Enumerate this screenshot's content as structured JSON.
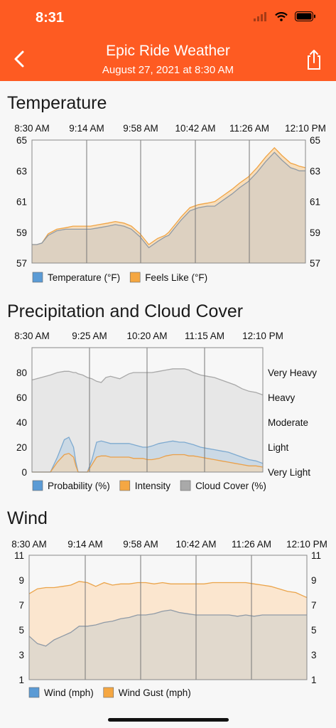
{
  "status_bar": {
    "time": "8:31"
  },
  "header": {
    "title": "Epic Ride Weather",
    "subtitle": "August 27, 2021 at 8:30 AM"
  },
  "colors": {
    "accent": "#fe5b22",
    "blue": "#5b9bd5",
    "orange": "#f5a742",
    "gray": "#a9a9a9"
  },
  "icons": {
    "back": "chevron-left-icon",
    "share": "share-icon"
  },
  "chart_data": [
    {
      "type": "area",
      "title": "Temperature",
      "x_ticks": [
        "8:30 AM",
        "9:14 AM",
        "9:58 AM",
        "10:42 AM",
        "11:26 AM",
        "12:10 PM"
      ],
      "x": [
        0,
        4,
        8,
        13,
        20,
        27,
        33,
        40,
        47,
        54,
        61,
        67,
        74,
        80,
        87,
        94,
        101,
        107,
        110,
        112,
        114,
        117,
        120,
        127,
        134,
        141,
        147,
        154,
        161,
        167,
        174,
        181,
        188,
        195,
        201,
        208,
        212,
        215,
        220
      ],
      "ylim": [
        57,
        65
      ],
      "y_ticks": [
        57,
        59,
        61,
        63,
        65
      ],
      "series": [
        {
          "name": "Temperature (°F)",
          "values": [
            58.2,
            58.2,
            58.3,
            58.8,
            59.1,
            59.2,
            59.2,
            59.2,
            59.2,
            59.3,
            59.4,
            59.5,
            59.4,
            59.2,
            58.7,
            58.0,
            58.4,
            58.7,
            58.8,
            59.0,
            59.2,
            59.5,
            59.8,
            60.4,
            60.6,
            60.7,
            60.7,
            61.1,
            61.5,
            61.9,
            62.3,
            62.9,
            63.6,
            64.2,
            63.7,
            63.2,
            63.1,
            63.0,
            63.0
          ]
        },
        {
          "name": "Feels Like (°F)",
          "values": [
            58.2,
            58.2,
            58.3,
            58.9,
            59.2,
            59.3,
            59.4,
            59.4,
            59.4,
            59.5,
            59.6,
            59.7,
            59.6,
            59.4,
            58.9,
            58.2,
            58.6,
            58.8,
            59.0,
            59.2,
            59.4,
            59.7,
            60.0,
            60.6,
            60.8,
            60.9,
            61.0,
            61.4,
            61.8,
            62.2,
            62.6,
            63.2,
            63.9,
            64.5,
            64.0,
            63.5,
            63.4,
            63.3,
            63.2
          ]
        }
      ],
      "legend": [
        "Temperature (°F)",
        "Feels Like (°F)"
      ]
    },
    {
      "type": "area",
      "title": "Precipitation and Cloud Cover",
      "x_ticks": [
        "8:30 AM",
        "9:25 AM",
        "10:20 AM",
        "11:15 AM",
        "12:10 PM"
      ],
      "x": [
        0,
        4,
        8,
        11,
        14,
        16,
        18,
        19,
        20,
        22,
        24,
        26,
        28,
        30,
        32,
        34,
        36,
        38,
        40,
        42,
        44,
        46,
        48,
        50,
        52,
        55,
        58,
        61,
        64,
        66,
        68,
        70,
        73,
        76,
        79,
        82,
        85,
        88,
        91,
        94,
        97,
        100
      ],
      "ylim": [
        0,
        100
      ],
      "y_ticks": [
        0,
        20,
        40,
        60,
        80
      ],
      "right_labels": [
        "Very Light",
        "Light",
        "Moderate",
        "Heavy",
        "Very Heavy"
      ],
      "series": [
        {
          "name": "Probability (%)",
          "values": [
            0,
            0,
            0,
            12,
            26,
            28,
            20,
            8,
            0,
            0,
            0,
            10,
            24,
            25,
            24,
            23,
            23,
            23,
            23,
            23,
            22,
            21,
            20,
            20,
            21,
            23,
            24,
            25,
            24,
            24,
            23,
            22,
            20,
            19,
            18,
            17,
            16,
            14,
            12,
            10,
            9,
            7
          ]
        },
        {
          "name": "Intensity",
          "values": [
            0,
            0,
            0,
            8,
            14,
            15,
            12,
            5,
            0,
            0,
            0,
            6,
            12,
            13,
            13,
            12,
            12,
            12,
            12,
            12,
            11,
            11,
            11,
            10,
            10,
            11,
            13,
            14,
            14,
            14,
            13,
            13,
            12,
            11,
            10,
            9,
            8,
            7,
            6,
            5,
            5,
            4
          ]
        },
        {
          "name": "Cloud Cover (%)",
          "values": [
            74,
            76,
            78,
            80,
            81,
            81,
            80,
            80,
            79,
            78,
            76,
            75,
            73,
            72,
            76,
            77,
            76,
            75,
            77,
            79,
            80,
            80,
            80,
            80,
            80,
            81,
            82,
            83,
            83,
            83,
            82,
            80,
            78,
            77,
            76,
            74,
            72,
            70,
            67,
            65,
            64,
            62
          ]
        }
      ],
      "legend": [
        "Probability (%)",
        "Intensity",
        "Cloud Cover (%)"
      ]
    },
    {
      "type": "area",
      "title": "Wind",
      "x_ticks": [
        "8:30 AM",
        "9:14 AM",
        "9:58 AM",
        "10:42 AM",
        "11:26 AM",
        "12:10 PM"
      ],
      "x": [
        0,
        3,
        6,
        9,
        12,
        15,
        18,
        21,
        24,
        27,
        30,
        33,
        36,
        39,
        42,
        45,
        48,
        51,
        54,
        57,
        60,
        63,
        66,
        69,
        72,
        75,
        78,
        81,
        84,
        87,
        90,
        93,
        96,
        99,
        100
      ],
      "ylim": [
        1,
        11
      ],
      "y_ticks": [
        1,
        3,
        5,
        7,
        9,
        11
      ],
      "series": [
        {
          "name": "Wind (mph)",
          "values": [
            4.5,
            3.9,
            3.7,
            4.2,
            4.5,
            4.8,
            5.3,
            5.3,
            5.4,
            5.6,
            5.7,
            5.9,
            6.0,
            6.2,
            6.2,
            6.3,
            6.5,
            6.6,
            6.4,
            6.3,
            6.2,
            6.2,
            6.2,
            6.2,
            6.2,
            6.1,
            6.2,
            6.1,
            6.2,
            6.2,
            6.2,
            6.2,
            6.2,
            6.2,
            6.2
          ]
        },
        {
          "name": "Wind Gust (mph)",
          "values": [
            7.9,
            8.3,
            8.4,
            8.4,
            8.5,
            8.6,
            8.9,
            8.8,
            8.5,
            8.8,
            8.6,
            8.7,
            8.7,
            8.8,
            8.8,
            8.7,
            8.8,
            8.7,
            8.7,
            8.7,
            8.7,
            8.7,
            8.8,
            8.8,
            8.8,
            8.8,
            8.8,
            8.7,
            8.6,
            8.5,
            8.3,
            8.1,
            8.0,
            7.7,
            7.6
          ]
        }
      ],
      "legend": [
        "Wind (mph)",
        "Wind Gust (mph)"
      ]
    }
  ]
}
